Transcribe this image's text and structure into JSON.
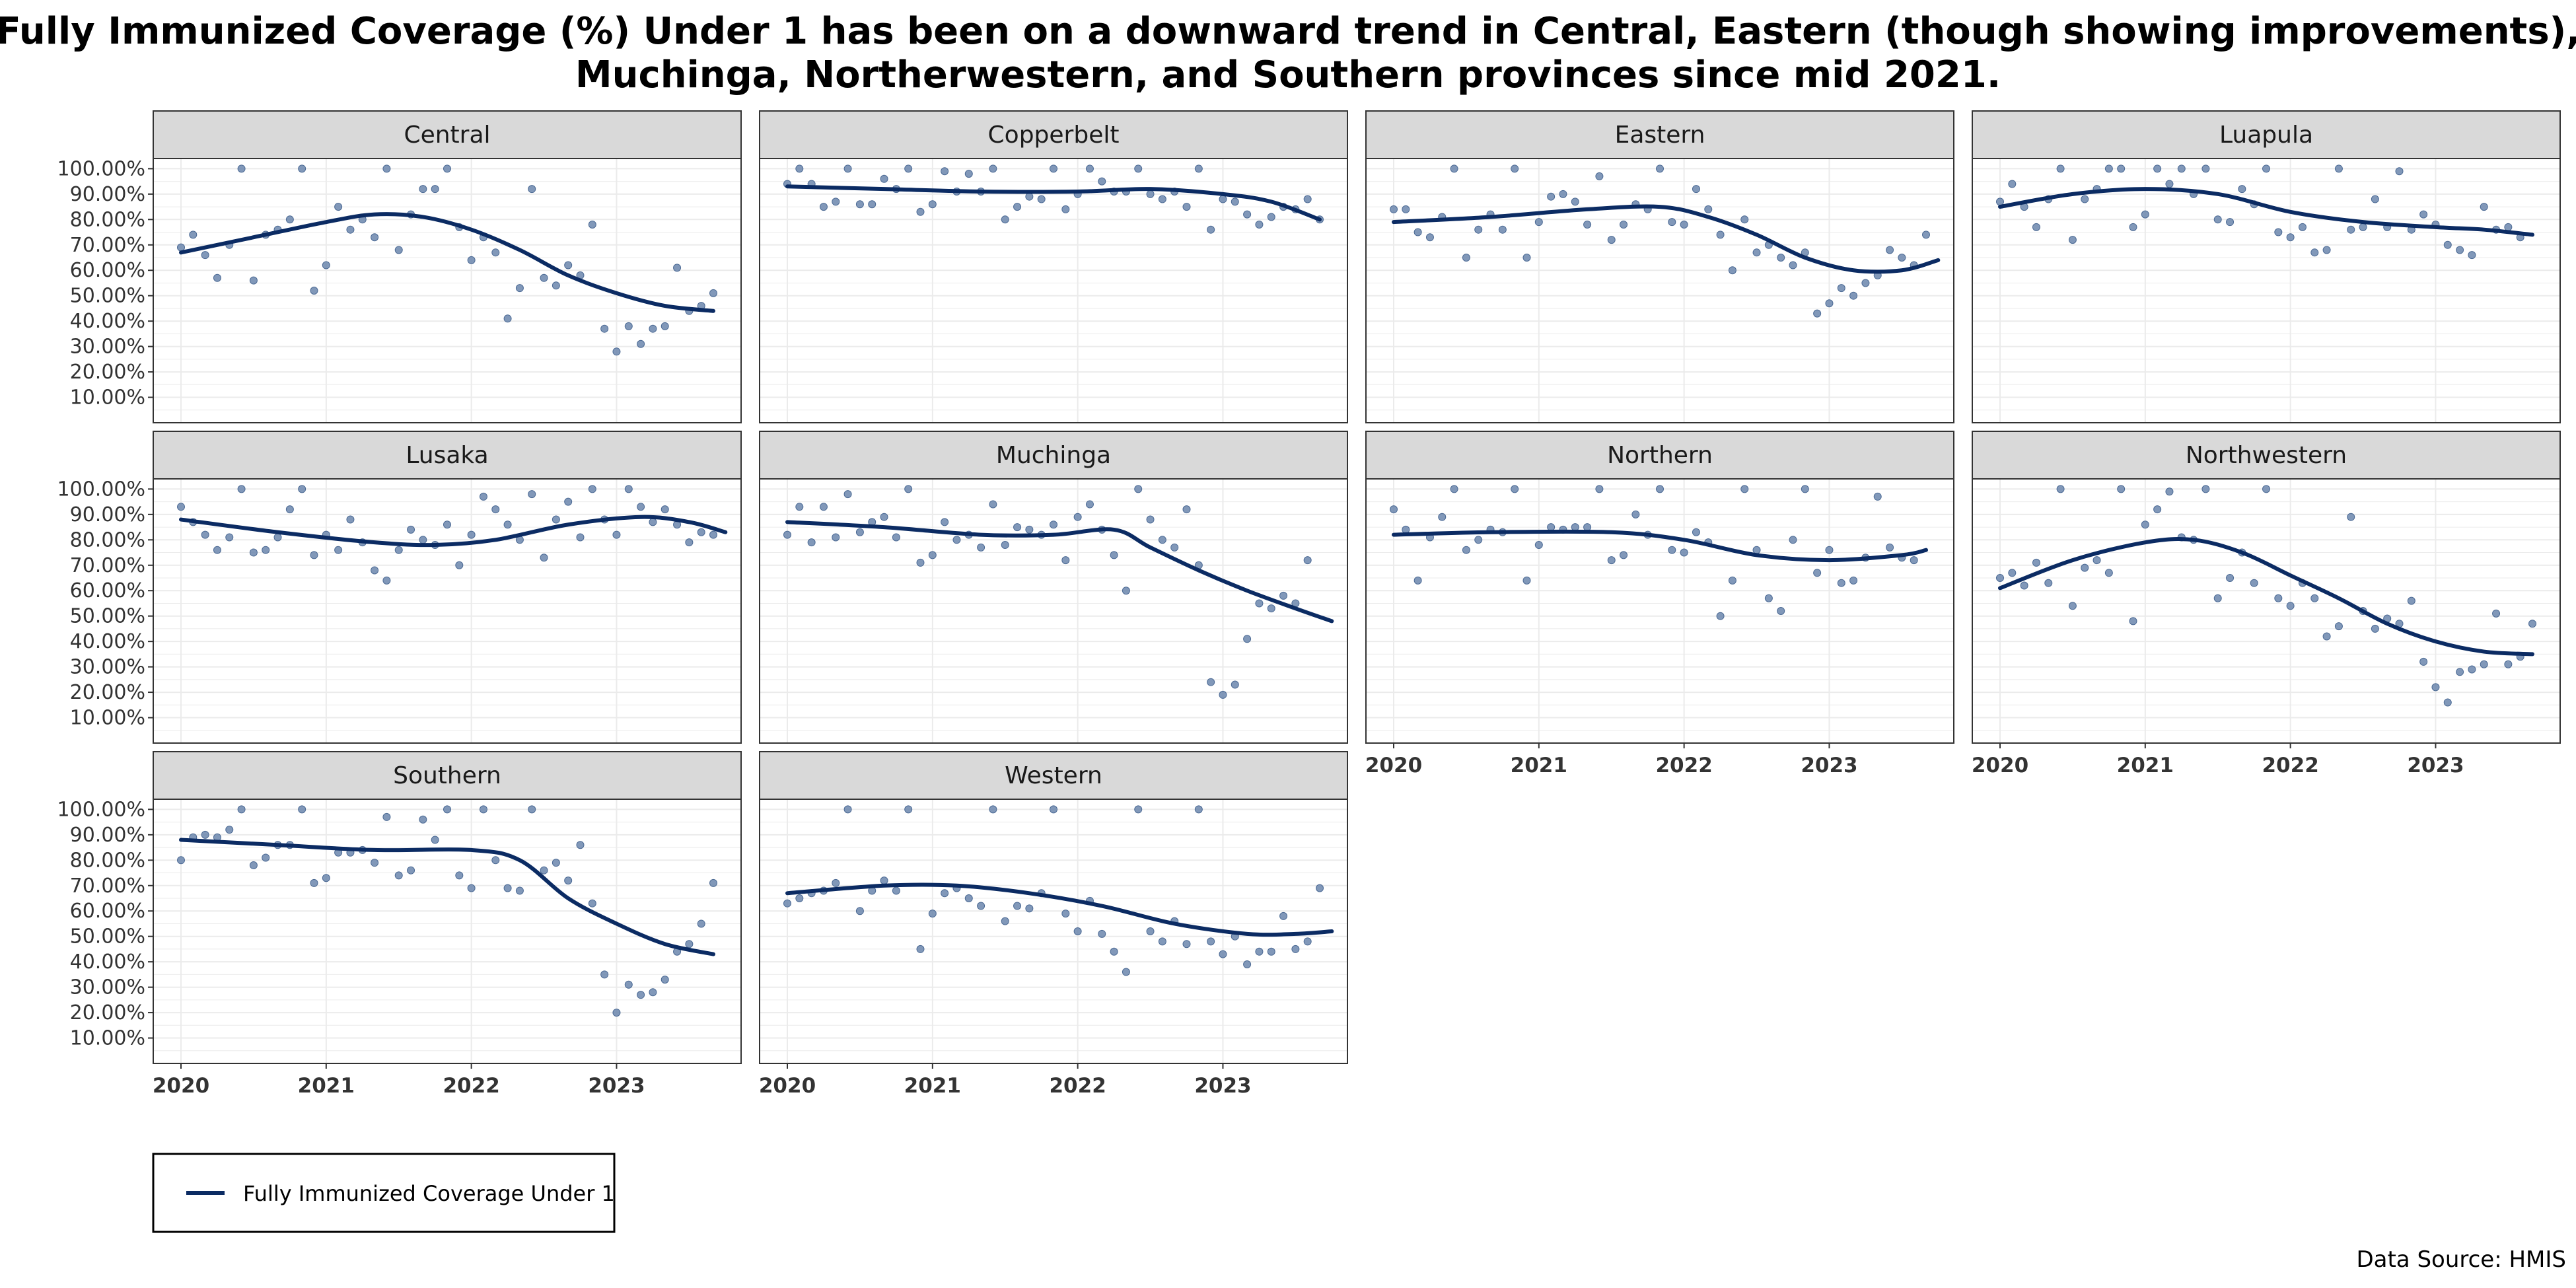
{
  "chart_data": {
    "type": "scatter",
    "title_lines": [
      "Fully Immunized Coverage (%) Under 1 has been on a downward trend in Central, Eastern (though showing improvements),",
      "Muchinga, Northerwestern, and Southern provinces since mid 2021."
    ],
    "y_ticks": [
      "10.00%",
      "20.00%",
      "30.00%",
      "40.00%",
      "50.00%",
      "60.00%",
      "70.00%",
      "80.00%",
      "90.00%",
      "100.00%"
    ],
    "x_ticks": [
      "2020",
      "2021",
      "2022",
      "2023"
    ],
    "ylim": [
      0,
      104
    ],
    "x_range": [
      "2020-01",
      "2023-09"
    ],
    "grid": true,
    "series_name": "Fully Immunized Coverage Under 1",
    "colors": {
      "points": "#6b86ad",
      "trend": "#0b2b63",
      "strip": "#d9d9d9",
      "grid": "#ebebeb"
    },
    "legend_position": "bottom-left",
    "source": "Data Source: HMIS",
    "panels": [
      {
        "name": "Central",
        "points": [
          69,
          74,
          66,
          57,
          70,
          100,
          56,
          74,
          76,
          80,
          100,
          52,
          62,
          85,
          76,
          80,
          73,
          100,
          68,
          82,
          92,
          92,
          100,
          77,
          64,
          73,
          67,
          41,
          53,
          92,
          57,
          54,
          62,
          58,
          78,
          37,
          28,
          38,
          31,
          37,
          38,
          61,
          44,
          46,
          51
        ],
        "trend": [
          [
            0,
            67
          ],
          [
            6,
            73
          ],
          [
            12,
            79
          ],
          [
            16,
            82
          ],
          [
            20,
            81
          ],
          [
            24,
            76
          ],
          [
            28,
            68
          ],
          [
            32,
            58
          ],
          [
            36,
            51
          ],
          [
            40,
            46
          ],
          [
            44,
            44
          ]
        ]
      },
      {
        "name": "Copperbelt",
        "points": [
          94,
          100,
          94,
          85,
          87,
          100,
          86,
          86,
          96,
          92,
          100,
          83,
          86,
          99,
          91,
          98,
          91,
          100,
          80,
          85,
          89,
          88,
          100,
          84,
          90,
          100,
          95,
          91,
          91,
          100,
          90,
          88,
          91,
          85,
          100,
          76,
          88,
          87,
          82,
          78,
          81,
          85,
          84,
          88,
          80
        ],
        "trend": [
          [
            0,
            93
          ],
          [
            8,
            92
          ],
          [
            16,
            91
          ],
          [
            24,
            91
          ],
          [
            30,
            92
          ],
          [
            36,
            90
          ],
          [
            40,
            87
          ],
          [
            44,
            80
          ]
        ]
      },
      {
        "name": "Eastern",
        "points": [
          84,
          84,
          75,
          73,
          81,
          100,
          65,
          76,
          82,
          76,
          100,
          65,
          79,
          89,
          90,
          87,
          78,
          97,
          72,
          78,
          86,
          84,
          100,
          79,
          78,
          92,
          84,
          74,
          60,
          80,
          67,
          70,
          65,
          62,
          67,
          43,
          47,
          53,
          50,
          55,
          58,
          68,
          65,
          62,
          74
        ],
        "trend": [
          [
            0,
            79
          ],
          [
            8,
            81
          ],
          [
            16,
            84
          ],
          [
            22,
            85
          ],
          [
            26,
            81
          ],
          [
            30,
            74
          ],
          [
            34,
            65
          ],
          [
            38,
            60
          ],
          [
            42,
            60
          ],
          [
            45,
            64
          ]
        ]
      },
      {
        "name": "Luapula",
        "points": [
          87,
          94,
          85,
          77,
          88,
          100,
          72,
          88,
          92,
          100,
          100,
          77,
          82,
          100,
          94,
          100,
          90,
          100,
          80,
          79,
          92,
          86,
          100,
          75,
          73,
          77,
          67,
          68,
          100,
          76,
          77,
          88,
          77,
          99,
          76,
          82,
          78,
          70,
          68,
          66,
          85,
          76,
          77,
          73
        ],
        "trend": [
          [
            0,
            85
          ],
          [
            6,
            90
          ],
          [
            12,
            92
          ],
          [
            18,
            90
          ],
          [
            24,
            83
          ],
          [
            30,
            79
          ],
          [
            36,
            77
          ],
          [
            40,
            76
          ],
          [
            44,
            74
          ]
        ]
      },
      {
        "name": "Lusaka",
        "points": [
          93,
          87,
          82,
          76,
          81,
          100,
          75,
          76,
          81,
          92,
          100,
          74,
          82,
          76,
          88,
          79,
          68,
          64,
          76,
          84,
          80,
          78,
          86,
          70,
          82,
          97,
          92,
          86,
          80,
          98,
          73,
          88,
          95,
          81,
          100,
          88,
          82,
          100,
          93,
          87,
          92,
          86,
          79,
          83,
          82
        ],
        "trend": [
          [
            0,
            88
          ],
          [
            8,
            83
          ],
          [
            16,
            79
          ],
          [
            21,
            78
          ],
          [
            26,
            80
          ],
          [
            32,
            86
          ],
          [
            38,
            89
          ],
          [
            42,
            87
          ],
          [
            45,
            83
          ]
        ]
      },
      {
        "name": "Muchinga",
        "points": [
          82,
          93,
          79,
          93,
          81,
          98,
          83,
          87,
          89,
          81,
          100,
          71,
          74,
          87,
          80,
          82,
          77,
          94,
          78,
          85,
          84,
          82,
          86,
          72,
          89,
          94,
          84,
          74,
          60,
          100,
          88,
          80,
          77,
          92,
          70,
          24,
          19,
          23,
          41,
          55,
          53,
          58,
          55,
          72
        ],
        "trend": [
          [
            0,
            87
          ],
          [
            8,
            85
          ],
          [
            16,
            82
          ],
          [
            22,
            82
          ],
          [
            27,
            84
          ],
          [
            30,
            77
          ],
          [
            34,
            68
          ],
          [
            38,
            60
          ],
          [
            42,
            53
          ],
          [
            45,
            48
          ]
        ]
      },
      {
        "name": "Northern",
        "points": [
          92,
          84,
          64,
          81,
          89,
          100,
          76,
          80,
          84,
          83,
          100,
          64,
          78,
          85,
          84,
          85,
          85,
          100,
          72,
          74,
          90,
          82,
          100,
          76,
          75,
          83,
          79,
          50,
          64,
          100,
          76,
          57,
          52,
          80,
          100,
          67,
          76,
          63,
          64,
          73,
          97,
          77,
          73,
          72
        ],
        "trend": [
          [
            0,
            82
          ],
          [
            8,
            83
          ],
          [
            18,
            83
          ],
          [
            24,
            80
          ],
          [
            30,
            74
          ],
          [
            36,
            72
          ],
          [
            42,
            74
          ],
          [
            44,
            76
          ]
        ]
      },
      {
        "name": "Northwestern",
        "points": [
          65,
          67,
          62,
          71,
          63,
          100,
          54,
          69,
          72,
          67,
          100,
          48,
          86,
          92,
          99,
          81,
          80,
          100,
          57,
          65,
          75,
          63,
          100,
          57,
          54,
          63,
          57,
          42,
          46,
          89,
          52,
          45,
          49,
          47,
          56,
          32,
          22,
          16,
          28,
          29,
          31,
          51,
          31,
          34,
          47
        ],
        "trend": [
          [
            0,
            61
          ],
          [
            6,
            72
          ],
          [
            12,
            79
          ],
          [
            16,
            80
          ],
          [
            20,
            75
          ],
          [
            24,
            66
          ],
          [
            28,
            57
          ],
          [
            32,
            47
          ],
          [
            36,
            40
          ],
          [
            40,
            36
          ],
          [
            44,
            35
          ]
        ]
      },
      {
        "name": "Southern",
        "points": [
          80,
          89,
          90,
          89,
          92,
          100,
          78,
          81,
          86,
          86,
          100,
          71,
          73,
          83,
          83,
          84,
          79,
          97,
          74,
          76,
          96,
          88,
          100,
          74,
          69,
          100,
          80,
          69,
          68,
          100,
          76,
          79,
          72,
          86,
          63,
          35,
          20,
          31,
          27,
          28,
          33,
          44,
          47,
          55,
          71
        ],
        "trend": [
          [
            0,
            88
          ],
          [
            8,
            86
          ],
          [
            16,
            84
          ],
          [
            24,
            84
          ],
          [
            28,
            80
          ],
          [
            32,
            65
          ],
          [
            36,
            55
          ],
          [
            40,
            47
          ],
          [
            44,
            43
          ]
        ]
      },
      {
        "name": "Western",
        "points": [
          63,
          65,
          67,
          68,
          71,
          100,
          60,
          68,
          72,
          68,
          100,
          45,
          59,
          67,
          69,
          65,
          62,
          100,
          56,
          62,
          61,
          67,
          100,
          59,
          52,
          64,
          51,
          44,
          36,
          100,
          52,
          48,
          56,
          47,
          100,
          48,
          43,
          50,
          39,
          44,
          44,
          58,
          45,
          48,
          69
        ],
        "trend": [
          [
            0,
            67
          ],
          [
            8,
            70
          ],
          [
            14,
            70
          ],
          [
            20,
            67
          ],
          [
            26,
            62
          ],
          [
            32,
            55
          ],
          [
            38,
            51
          ],
          [
            42,
            51
          ],
          [
            45,
            52
          ]
        ]
      }
    ]
  }
}
